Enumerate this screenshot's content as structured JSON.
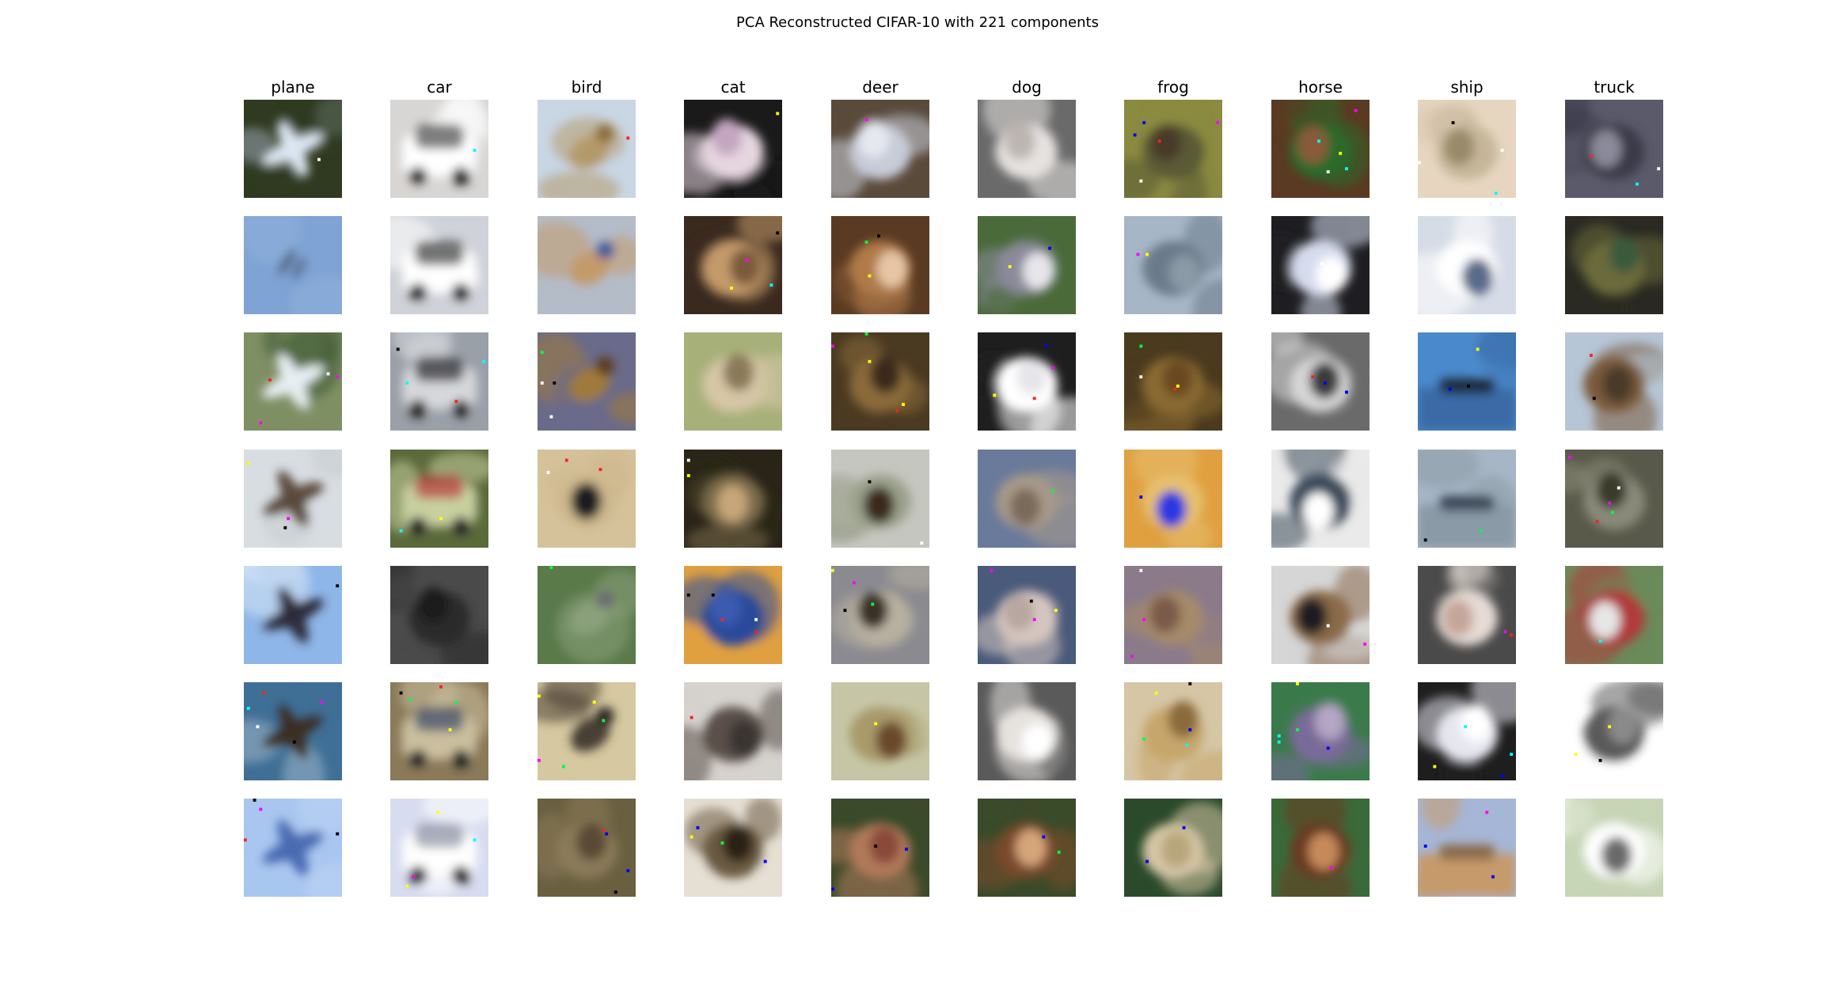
{
  "figure": {
    "title": "PCA Reconstructed CIFAR-10 with 221 components"
  },
  "grid": {
    "rows": 7,
    "columns": [
      {
        "label": "plane"
      },
      {
        "label": "car"
      },
      {
        "label": "bird"
      },
      {
        "label": "cat"
      },
      {
        "label": "deer"
      },
      {
        "label": "dog"
      },
      {
        "label": "frog"
      },
      {
        "label": "horse"
      },
      {
        "label": "ship"
      },
      {
        "label": "truck"
      }
    ]
  },
  "thumbnails": [
    [
      {
        "bg": "#2f3a20",
        "mid": "#9aa6b4",
        "fg": "#dce6f2",
        "shape": "plane"
      },
      {
        "bg": "#7ea3d4",
        "mid": "#8fb0da",
        "fg": "#4d5f78",
        "shape": "plane-small"
      },
      {
        "bg": "#7f8f64",
        "mid": "#3e5a33",
        "fg": "#e6eef2",
        "shape": "plane"
      },
      {
        "bg": "#d8dde2",
        "mid": "#c8ccd0",
        "fg": "#5a4a3a",
        "shape": "plane"
      },
      {
        "bg": "#8fb6e8",
        "mid": "#d7e6f6",
        "fg": "#2c2a3a",
        "shape": "plane"
      },
      {
        "bg": "#3f6f96",
        "mid": "#9fb7c9",
        "fg": "#3a2f24",
        "shape": "plane"
      },
      {
        "bg": "#a8c6f0",
        "mid": "#bdd4f4",
        "fg": "#4a6ab0",
        "shape": "plane"
      }
    ],
    [
      {
        "bg": "#d8d6d4",
        "mid": "#ffffff",
        "fg": "#4a4a4a",
        "shape": "car"
      },
      {
        "bg": "#cfd2d8",
        "mid": "#ffffff",
        "fg": "#3a3a3a",
        "shape": "car"
      },
      {
        "bg": "#9aa0a8",
        "mid": "#d6d8dc",
        "fg": "#2a2a2e",
        "shape": "car"
      },
      {
        "bg": "#5a6a3a",
        "mid": "#c8d0a0",
        "fg": "#b83a3a",
        "shape": "car"
      },
      {
        "bg": "#4a4a4a",
        "mid": "#2a2a2a",
        "fg": "#1a1a1a",
        "shape": "blob"
      },
      {
        "bg": "#8a7a5a",
        "mid": "#cbbf9e",
        "fg": "#3a4a66",
        "shape": "car"
      },
      {
        "bg": "#d8dcf0",
        "mid": "#ffffff",
        "fg": "#8a8ea0",
        "shape": "car"
      }
    ],
    [
      {
        "bg": "#c9d6e4",
        "mid": "#b49a6a",
        "fg": "#8a6a3a",
        "shape": "bird"
      },
      {
        "bg": "#b4bcc8",
        "mid": "#c49a6a",
        "fg": "#3a5a9a",
        "shape": "bird"
      },
      {
        "bg": "#6a6a8a",
        "mid": "#a07a3a",
        "fg": "#5a3a1a",
        "shape": "bird"
      },
      {
        "bg": "#d6c29a",
        "mid": "#cdb88e",
        "fg": "#1e1e22",
        "shape": "blob"
      },
      {
        "bg": "#5a7a4a",
        "mid": "#8aa07a",
        "fg": "#6a6a72",
        "shape": "bird"
      },
      {
        "bg": "#d6c8a0",
        "mid": "#4a4036",
        "fg": "#2a2622",
        "shape": "bird"
      },
      {
        "bg": "#6a6040",
        "mid": "#8a7a5a",
        "fg": "#5a4a36",
        "shape": "blob"
      }
    ],
    [
      {
        "bg": "#1a1a1a",
        "mid": "#e6d6e0",
        "fg": "#c4a6c0",
        "shape": "blob"
      },
      {
        "bg": "#3a2a1e",
        "mid": "#c49a6a",
        "fg": "#7a5a3a",
        "shape": "blob"
      },
      {
        "bg": "#a8b07a",
        "mid": "#d6c6a6",
        "fg": "#8a7a5a",
        "shape": "blob"
      },
      {
        "bg": "#2a2418",
        "mid": "#7a6a4a",
        "fg": "#c6a67a",
        "shape": "blob"
      },
      {
        "bg": "#e0a040",
        "mid": "#2a4a9a",
        "fg": "#3a5ab0",
        "shape": "blob"
      },
      {
        "bg": "#d6d2ce",
        "mid": "#5a5048",
        "fg": "#3a3630",
        "shape": "blob"
      },
      {
        "bg": "#e6e0d4",
        "mid": "#6a5a40",
        "fg": "#2a2418",
        "shape": "blob"
      }
    ],
    [
      {
        "bg": "#5a4a3a",
        "mid": "#c8ccd8",
        "fg": "#e6e8f0",
        "shape": "blob"
      },
      {
        "bg": "#5a3a22",
        "mid": "#b07a4a",
        "fg": "#e6c6a6",
        "shape": "blob"
      },
      {
        "bg": "#4a3a22",
        "mid": "#8a6a3a",
        "fg": "#3a2a1a",
        "shape": "blob"
      },
      {
        "bg": "#c6c6c0",
        "mid": "#9aa08a",
        "fg": "#3a2a1e",
        "shape": "blob"
      },
      {
        "bg": "#8a8a90",
        "mid": "#b8b0a0",
        "fg": "#3a3026",
        "shape": "blob"
      },
      {
        "bg": "#c6c6a6",
        "mid": "#a89a6a",
        "fg": "#6a4a2a",
        "shape": "blob"
      },
      {
        "bg": "#3a4a2a",
        "mid": "#b07a5a",
        "fg": "#8a4a3a",
        "shape": "blob"
      }
    ],
    [
      {
        "bg": "#6a6a6a",
        "mid": "#e6e2e0",
        "fg": "#bdb6b0",
        "shape": "blob"
      },
      {
        "bg": "#4a6a3a",
        "mid": "#8a8a9a",
        "fg": "#e6e6ea",
        "shape": "blob"
      },
      {
        "bg": "#1e1e1e",
        "mid": "#ffffff",
        "fg": "#e6e6ea",
        "shape": "blob"
      },
      {
        "bg": "#6a7a9a",
        "mid": "#a89a8a",
        "fg": "#7a6a5a",
        "shape": "blob"
      },
      {
        "bg": "#4a5a7a",
        "mid": "#d6c6c0",
        "fg": "#b8a6a0",
        "shape": "blob"
      },
      {
        "bg": "#5a5a5a",
        "mid": "#e6e2de",
        "fg": "#ffffff",
        "shape": "blob"
      },
      {
        "bg": "#3a4a2a",
        "mid": "#7a4a2a",
        "fg": "#d6a67a",
        "shape": "blob"
      }
    ],
    [
      {
        "bg": "#8a8a40",
        "mid": "#5a5a36",
        "fg": "#4a3a2a",
        "shape": "blob"
      },
      {
        "bg": "#a6b6c6",
        "mid": "#6a7a8a",
        "fg": "#8a9aa6",
        "shape": "blob"
      },
      {
        "bg": "#4a3a1e",
        "mid": "#8a6a30",
        "fg": "#6a4a22",
        "shape": "blob"
      },
      {
        "bg": "#e0a040",
        "mid": "#e6c070",
        "fg": "#2a38e0",
        "shape": "blob"
      },
      {
        "bg": "#8a7a8a",
        "mid": "#a68a6a",
        "fg": "#7a5a4a",
        "shape": "blob"
      },
      {
        "bg": "#d6c6a6",
        "mid": "#c6a66a",
        "fg": "#8a6a3a",
        "shape": "blob"
      },
      {
        "bg": "#2a4a2a",
        "mid": "#d6c6a6",
        "fg": "#b8a67a",
        "shape": "blob"
      }
    ],
    [
      {
        "bg": "#5a3a22",
        "mid": "#2a6a2a",
        "fg": "#8a5a3a",
        "shape": "blob"
      },
      {
        "bg": "#1e1e22",
        "mid": "#d6dcee",
        "fg": "#ffffff",
        "shape": "blob"
      },
      {
        "bg": "#6a6a6a",
        "mid": "#d6d6d6",
        "fg": "#3a3a3a",
        "shape": "blob"
      },
      {
        "bg": "#eaeaea",
        "mid": "#3a4a5a",
        "fg": "#ffffff",
        "shape": "blob"
      },
      {
        "bg": "#d6d6d6",
        "mid": "#8a6a4a",
        "fg": "#1e1e22",
        "shape": "blob"
      },
      {
        "bg": "#3a7a4a",
        "mid": "#7a6a9a",
        "fg": "#b4a6c4",
        "shape": "blob"
      },
      {
        "bg": "#3a6a3a",
        "mid": "#6a3a22",
        "fg": "#c68a5a",
        "shape": "blob"
      }
    ],
    [
      {
        "bg": "#e6d6c0",
        "mid": "#c6b69a",
        "fg": "#9a8a6a",
        "shape": "blob"
      },
      {
        "bg": "#d6dce6",
        "mid": "#ffffff",
        "fg": "#5a6a8a",
        "shape": "blob"
      },
      {
        "bg": "#4a8acc",
        "mid": "#3a6aa6",
        "fg": "#1e2a3a",
        "shape": "ship"
      },
      {
        "bg": "#a6b6c6",
        "mid": "#8a9aa6",
        "fg": "#3a4a5a",
        "shape": "ship"
      },
      {
        "bg": "#4a4a4a",
        "mid": "#e6dcd6",
        "fg": "#c6a69a",
        "shape": "blob"
      },
      {
        "bg": "#1e1e1e",
        "mid": "#e6e6f0",
        "fg": "#ffffff",
        "shape": "blob"
      },
      {
        "bg": "#a6b6d6",
        "mid": "#c69a6a",
        "fg": "#8a6a4a",
        "shape": "ship"
      }
    ],
    [
      {
        "bg": "#5a5a6a",
        "mid": "#3a3a4a",
        "fg": "#8a8a9a",
        "shape": "blob"
      },
      {
        "bg": "#2a2a22",
        "mid": "#6a6a3a",
        "fg": "#3a5a3a",
        "shape": "blob"
      },
      {
        "bg": "#b6c6d6",
        "mid": "#7a5a3a",
        "fg": "#4a3a2a",
        "shape": "blob"
      },
      {
        "bg": "#5a5a4a",
        "mid": "#8a8a7a",
        "fg": "#3a3a2a",
        "shape": "blob"
      },
      {
        "bg": "#6a8a5a",
        "mid": "#b03a3a",
        "fg": "#e6e6e6",
        "shape": "blob"
      },
      {
        "bg": "#ffffff",
        "mid": "#5a5a5a",
        "fg": "#8a8a8a",
        "shape": "blob"
      },
      {
        "bg": "#c6d6b6",
        "mid": "#ffffff",
        "fg": "#6a6a6a",
        "shape": "blob"
      }
    ]
  ]
}
